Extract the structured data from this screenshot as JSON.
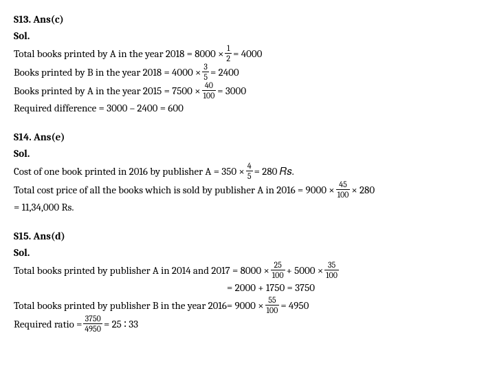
{
  "s13": {
    "heading": "S13. Ans(c)",
    "sol": "Sol.",
    "l1a": "Total books printed by A in the year 2018 = 8000 ×",
    "l1f": {
      "n": "1",
      "d": "2"
    },
    "l1b": "= 4000",
    "l2a": "Books printed by B in the year 2018 = 4000 ×",
    "l2f": {
      "n": "3",
      "d": "5"
    },
    "l2b": "= 2400",
    "l3a": "Books printed by A in the year 2015 = 7500 ×",
    "l3f": {
      "n": "40",
      "d": "100"
    },
    "l3b": "= 3000",
    "l4": "Required difference = 3000 –  2400 = 600"
  },
  "s14": {
    "heading": "S14. Ans(e)",
    "sol": "Sol.",
    "l1a": "Cost of one book printed in 2016 by publisher A = 350 ×",
    "l1f": {
      "n": "4",
      "d": "5"
    },
    "l1b": "= 280 𝑅𝑠.",
    "l2a": "Total cost price of all the books which is sold by publisher A in 2016 = 9000 ×",
    "l2f": {
      "n": "45",
      "d": "100"
    },
    "l2b": "× 280",
    "l3": "= 11,34,000 Rs."
  },
  "s15": {
    "heading": "S15. Ans(d)",
    "sol": "Sol.",
    "l1a": "Total books printed by publisher A in 2014 and 2017 = 8000 ×",
    "l1f1": {
      "n": "25",
      "d": "100"
    },
    "l1b": "+ 5000 ×",
    "l1f2": {
      "n": "35",
      "d": "100"
    },
    "l2": "= 2000 + 1750 = 3750",
    "l3a": "Total books printed by publisher B in the year 2016=  9000 ×",
    "l3f": {
      "n": "55",
      "d": "100"
    },
    "l3b": "= 4950",
    "l4a": "Required ratio =",
    "l4f": {
      "n": "3750",
      "d": "4950"
    },
    "l4b": "= 25 ∶ 33"
  }
}
